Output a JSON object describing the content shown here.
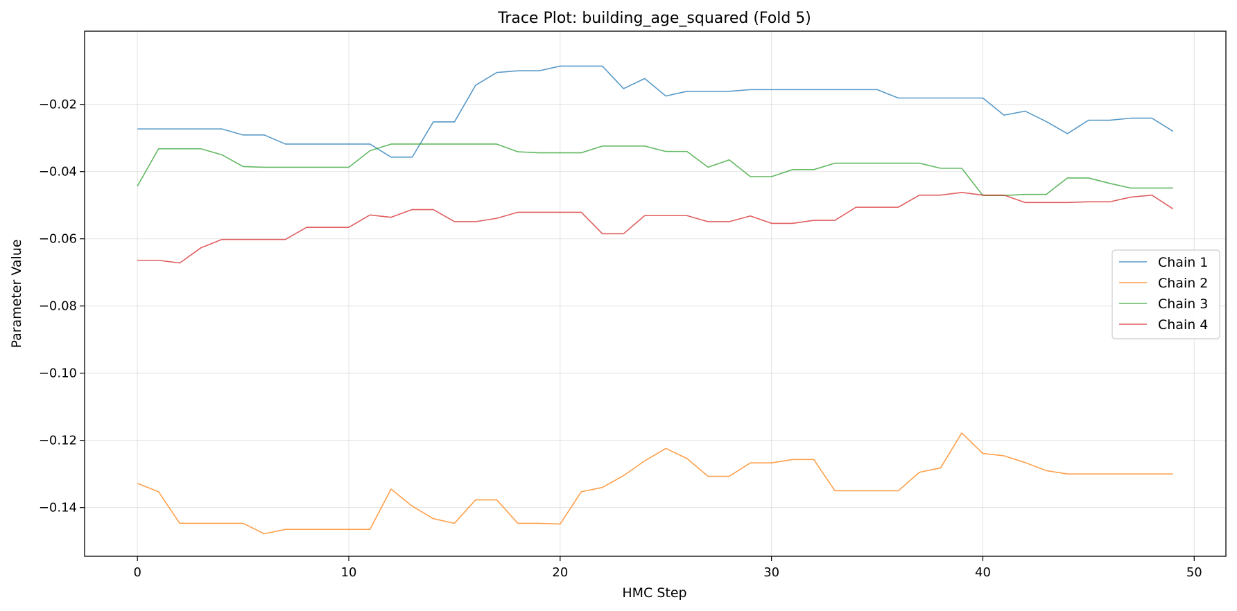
{
  "chart_data": {
    "type": "line",
    "title": "Trace Plot: building_age_squared (Fold 5)",
    "xlabel": "HMC Step",
    "ylabel": "Parameter Value",
    "xlim": [
      -2.5,
      51.5
    ],
    "ylim": [
      -0.1545,
      0.0018
    ],
    "xticks": [
      0,
      10,
      20,
      30,
      40,
      50
    ],
    "yticks": [
      -0.02,
      -0.04,
      -0.06,
      -0.08,
      -0.1,
      -0.12,
      -0.14
    ],
    "ytick_labels": [
      "−0.02",
      "−0.04",
      "−0.06",
      "−0.08",
      "−0.10",
      "−0.12",
      "−0.14"
    ],
    "grid": true,
    "legend_position": "center-right",
    "x": [
      0,
      1,
      2,
      3,
      4,
      5,
      6,
      7,
      8,
      9,
      10,
      11,
      12,
      13,
      14,
      15,
      16,
      17,
      18,
      19,
      20,
      21,
      22,
      23,
      24,
      25,
      26,
      27,
      28,
      29,
      30,
      31,
      32,
      33,
      34,
      35,
      36,
      37,
      38,
      39,
      40,
      41,
      42,
      43,
      44,
      45,
      46,
      47,
      48,
      49
    ],
    "series": [
      {
        "name": "Chain 1",
        "color": "#1f77b4",
        "values": [
          -0.0273,
          -0.0273,
          -0.0273,
          -0.0273,
          -0.0273,
          -0.0291,
          -0.0291,
          -0.0318,
          -0.0318,
          -0.0318,
          -0.0318,
          -0.0318,
          -0.0357,
          -0.0357,
          -0.0252,
          -0.0252,
          -0.0143,
          -0.0105,
          -0.01,
          -0.01,
          -0.0086,
          -0.0086,
          -0.0086,
          -0.0153,
          -0.0123,
          -0.0175,
          -0.0161,
          -0.0161,
          -0.0161,
          -0.0156,
          -0.0156,
          -0.0156,
          -0.0156,
          -0.0156,
          -0.0156,
          -0.0156,
          -0.0181,
          -0.0181,
          -0.0181,
          -0.0181,
          -0.0181,
          -0.0232,
          -0.022,
          -0.0251,
          -0.0287,
          -0.0247,
          -0.0247,
          -0.0241,
          -0.0241,
          -0.028
        ]
      },
      {
        "name": "Chain 2",
        "color": "#ff7f0e",
        "values": [
          -0.1328,
          -0.1353,
          -0.1447,
          -0.1447,
          -0.1447,
          -0.1447,
          -0.1478,
          -0.1465,
          -0.1465,
          -0.1465,
          -0.1465,
          -0.1465,
          -0.1345,
          -0.1396,
          -0.1433,
          -0.1447,
          -0.1377,
          -0.1377,
          -0.1447,
          -0.1447,
          -0.1449,
          -0.1353,
          -0.134,
          -0.1305,
          -0.1261,
          -0.1224,
          -0.1254,
          -0.1307,
          -0.1307,
          -0.1267,
          -0.1267,
          -0.1257,
          -0.1257,
          -0.135,
          -0.135,
          -0.135,
          -0.135,
          -0.1295,
          -0.1282,
          -0.1178,
          -0.1239,
          -0.1246,
          -0.1266,
          -0.129,
          -0.13,
          -0.13,
          -0.13,
          -0.13,
          -0.13,
          -0.13
        ]
      },
      {
        "name": "Chain 3",
        "color": "#2ca02c",
        "values": [
          -0.0443,
          -0.0332,
          -0.0332,
          -0.0332,
          -0.035,
          -0.0385,
          -0.0387,
          -0.0387,
          -0.0387,
          -0.0387,
          -0.0387,
          -0.0338,
          -0.0318,
          -0.0318,
          -0.0318,
          -0.0318,
          -0.0318,
          -0.0318,
          -0.0341,
          -0.0344,
          -0.0344,
          -0.0344,
          -0.0324,
          -0.0324,
          -0.0324,
          -0.034,
          -0.034,
          -0.0387,
          -0.0365,
          -0.0415,
          -0.0415,
          -0.0394,
          -0.0394,
          -0.0375,
          -0.0375,
          -0.0375,
          -0.0375,
          -0.0375,
          -0.039,
          -0.039,
          -0.0471,
          -0.0471,
          -0.0468,
          -0.0468,
          -0.0419,
          -0.0419,
          -0.0435,
          -0.0449,
          -0.0449,
          -0.0449
        ]
      },
      {
        "name": "Chain 4",
        "color": "#d62728",
        "values": [
          -0.0664,
          -0.0664,
          -0.0672,
          -0.0627,
          -0.0602,
          -0.0602,
          -0.0602,
          -0.0602,
          -0.0566,
          -0.0566,
          -0.0566,
          -0.0529,
          -0.0536,
          -0.0513,
          -0.0513,
          -0.0549,
          -0.0549,
          -0.0539,
          -0.0521,
          -0.0521,
          -0.0521,
          -0.0521,
          -0.0585,
          -0.0585,
          -0.0531,
          -0.0531,
          -0.0531,
          -0.0549,
          -0.0549,
          -0.0532,
          -0.0554,
          -0.0554,
          -0.0545,
          -0.0545,
          -0.0506,
          -0.0506,
          -0.0506,
          -0.047,
          -0.047,
          -0.0462,
          -0.047,
          -0.047,
          -0.0492,
          -0.0492,
          -0.0492,
          -0.049,
          -0.049,
          -0.0476,
          -0.047,
          -0.0511
        ]
      }
    ]
  }
}
